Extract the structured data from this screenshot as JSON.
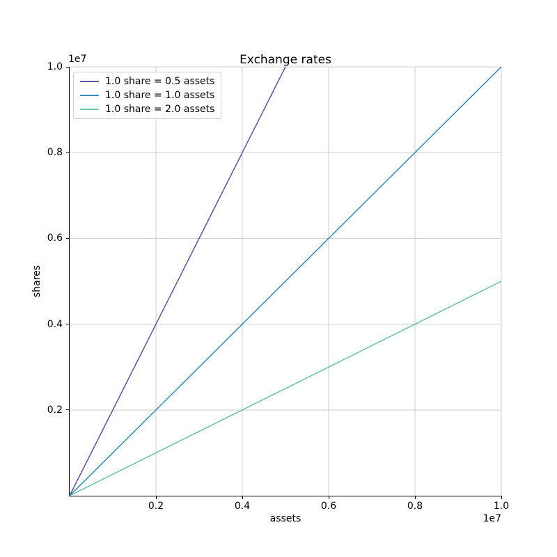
{
  "chart_data": {
    "type": "line",
    "title": "Exchange rates",
    "xlabel": "assets",
    "ylabel": "shares",
    "x_offset_text": "1e7",
    "y_offset_text": "1e7",
    "xlim": [
      0,
      10000000
    ],
    "ylim": [
      0,
      10000000
    ],
    "xticks": [
      2000000,
      4000000,
      6000000,
      8000000,
      10000000
    ],
    "xtick_labels": [
      "0.2",
      "0.4",
      "0.6",
      "0.8",
      "1.0"
    ],
    "yticks": [
      2000000,
      4000000,
      6000000,
      8000000,
      10000000
    ],
    "ytick_labels": [
      "0.2",
      "0.4",
      "0.6",
      "0.8",
      "1.0"
    ],
    "grid": true,
    "legend_position": "upper left",
    "series": [
      {
        "name": "1.0 share = 0.5 assets",
        "color": "#5e4fa2",
        "x": [
          0,
          5000000
        ],
        "y": [
          0,
          10000000
        ]
      },
      {
        "name": "1.0 share = 1.0 assets",
        "color": "#3288bd",
        "x": [
          0,
          10000000
        ],
        "y": [
          0,
          10000000
        ]
      },
      {
        "name": "1.0 share = 2.0 assets",
        "color": "#66c2a5",
        "x": [
          0,
          10000000
        ],
        "y": [
          0,
          5000000
        ]
      }
    ],
    "colors": {
      "grid": "#cdcdcd",
      "spine": "#000000",
      "background": "#ffffff",
      "text": "#000000"
    }
  }
}
